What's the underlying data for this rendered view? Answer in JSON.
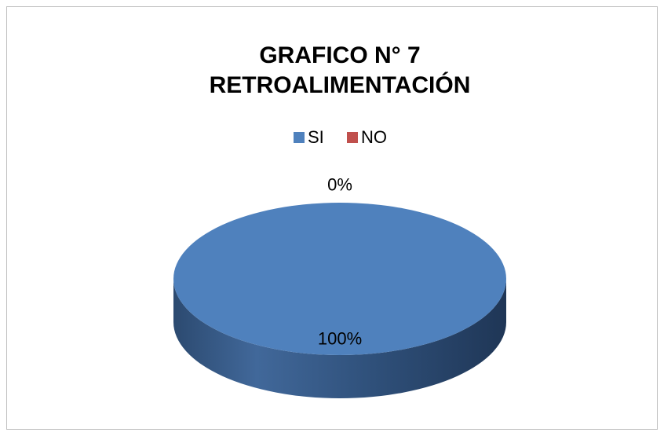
{
  "chart_data": {
    "type": "pie",
    "title": [
      "GRAFICO N° 7",
      "RETROALIMENTACIÓN"
    ],
    "categories": [
      "SI",
      "NO"
    ],
    "values": [
      100,
      0
    ],
    "value_labels": [
      "100%",
      "0%"
    ],
    "colors": [
      "#4f81bd",
      "#c0504d"
    ],
    "legend": "top",
    "3d": true
  }
}
